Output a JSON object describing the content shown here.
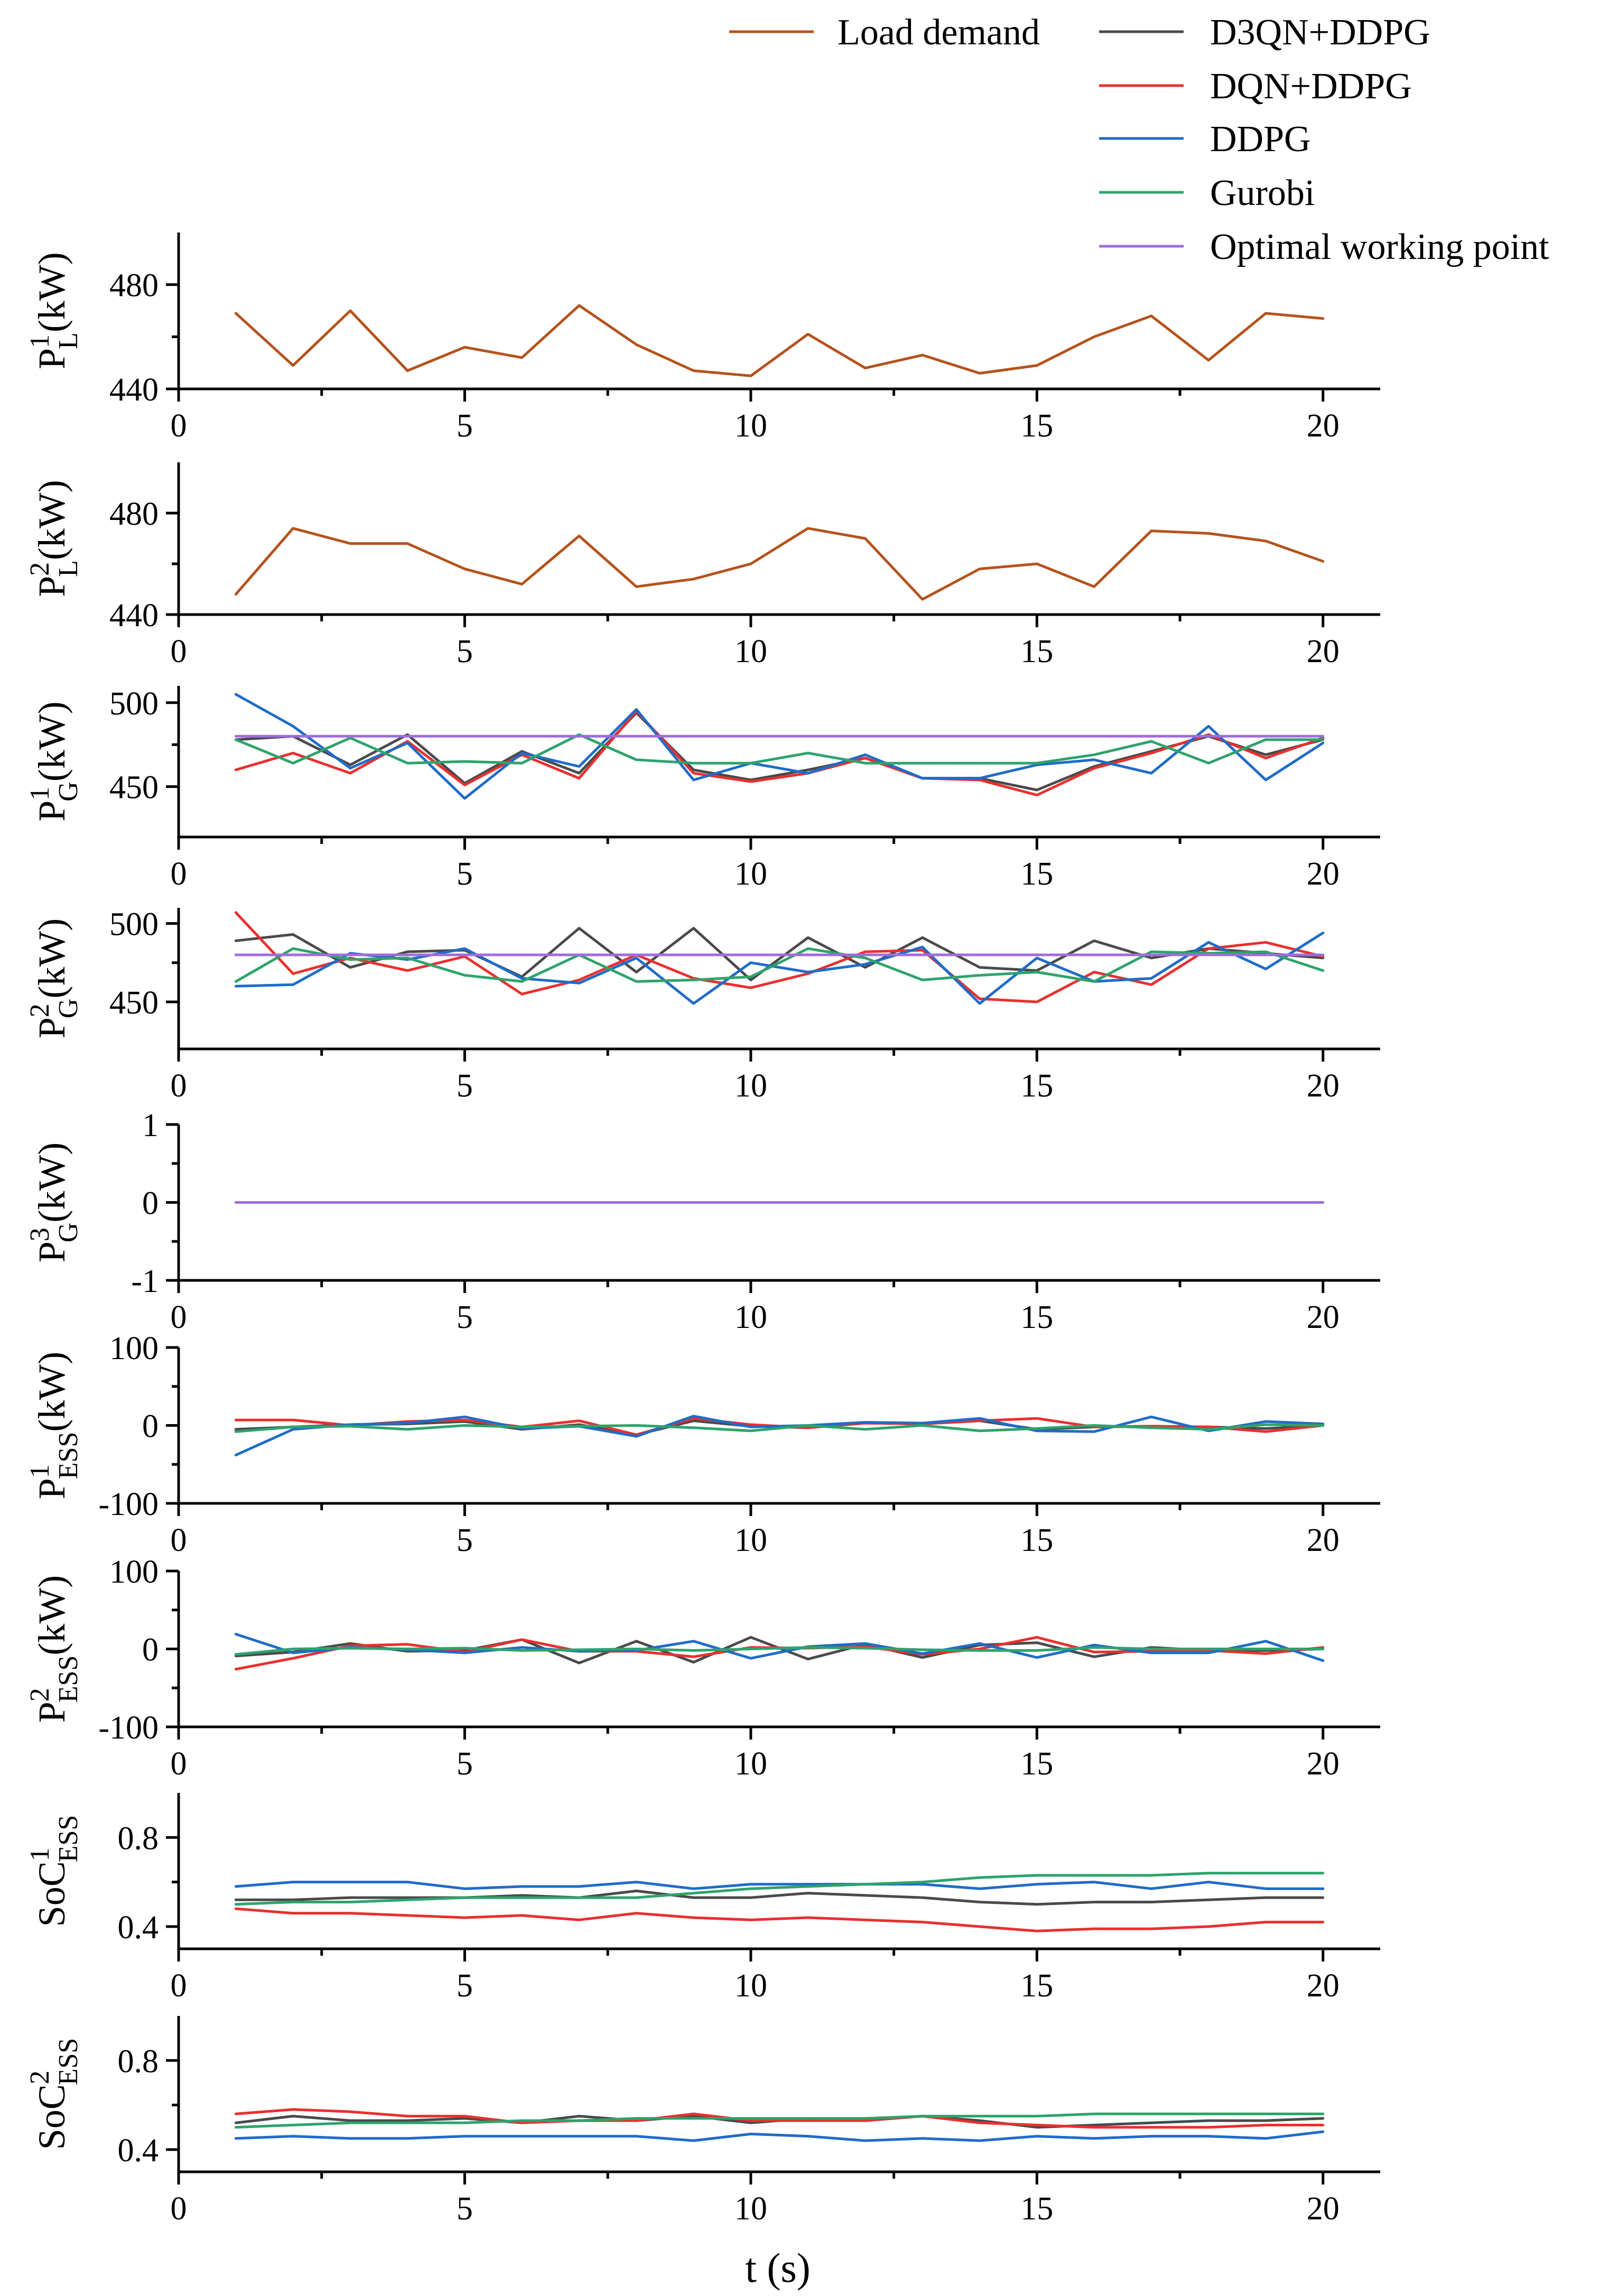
{
  "chart_data": {
    "type": "line",
    "xlabel": "t (s)",
    "colors": {
      "Load demand": "#b5521b",
      "D3QN+DDPG": "#4a4a4a",
      "DQN+DDPG": "#e8302f",
      "DDPG": "#1f6cc8",
      "Gurobi": "#2ea36b",
      "Optimal working point": "#a06cdc"
    },
    "legend": [
      "Load demand",
      "D3QN+DDPG",
      "DQN+DDPG",
      "DDPG",
      "Gurobi",
      "Optimal working point"
    ],
    "xlim": [
      0,
      21
    ],
    "xticks": [
      0,
      5,
      10,
      15,
      20
    ],
    "x": [
      1,
      2,
      3,
      4,
      5,
      6,
      7,
      8,
      9,
      10,
      11,
      12,
      13,
      14,
      15,
      16,
      17,
      18,
      19,
      20
    ],
    "panels": [
      {
        "id": "pl1",
        "ylabel": {
          "base": "P",
          "sup": "1",
          "sub": "L",
          "unit": "(kW)"
        },
        "ylim": [
          440,
          500
        ],
        "yticks": [
          440,
          480
        ],
        "series": [
          {
            "name": "Load demand",
            "values": [
              469,
              449,
              470,
              447,
              456,
              452,
              472,
              457,
              447,
              445,
              461,
              448,
              453,
              446,
              449,
              460,
              468,
              451,
              469,
              467
            ]
          }
        ]
      },
      {
        "id": "pl2",
        "ylabel": {
          "base": "P",
          "sup": "2",
          "sub": "L",
          "unit": "(kW)"
        },
        "ylim": [
          440,
          500
        ],
        "yticks": [
          440,
          480
        ],
        "series": [
          {
            "name": "Load demand",
            "values": [
              448,
              474,
              468,
              468,
              458,
              452,
              471,
              451,
              454,
              460,
              474,
              470,
              446,
              458,
              460,
              451,
              473,
              472,
              469,
              461
            ]
          }
        ]
      },
      {
        "id": "pg1",
        "ylabel": {
          "base": "P",
          "sup": "1",
          "sub": "G",
          "unit": "(kW)"
        },
        "ylim": [
          420,
          510
        ],
        "yticks": [
          450,
          500
        ],
        "series": [
          {
            "name": "D3QN+DDPG",
            "values": [
              478,
              480,
              463,
              481,
              452,
              471,
              458,
              494,
              460,
              454,
              460,
              467,
              455,
              455,
              448,
              462,
              471,
              480,
              469,
              478
            ]
          },
          {
            "name": "DQN+DDPG",
            "values": [
              460,
              470,
              458,
              477,
              451,
              469,
              455,
              495,
              458,
              453,
              458,
              467,
              455,
              454,
              445,
              461,
              470,
              481,
              467,
              479
            ]
          },
          {
            "name": "DDPG",
            "values": [
              505,
              486,
              461,
              476,
              443,
              470,
              462,
              496,
              454,
              464,
              458,
              469,
              455,
              455,
              463,
              466,
              458,
              486,
              454,
              476
            ]
          },
          {
            "name": "Gurobi",
            "values": [
              478,
              464,
              479,
              464,
              465,
              464,
              481,
              466,
              464,
              464,
              470,
              464,
              464,
              464,
              464,
              469,
              477,
              464,
              478,
              478
            ]
          },
          {
            "name": "Optimal working point",
            "values": [
              480,
              480,
              480,
              480,
              480,
              480,
              480,
              480,
              480,
              480,
              480,
              480,
              480,
              480,
              480,
              480,
              480,
              480,
              480,
              480
            ]
          }
        ]
      },
      {
        "id": "pg2",
        "ylabel": {
          "base": "P",
          "sup": "2",
          "sub": "G",
          "unit": "(kW)"
        },
        "ylim": [
          420,
          510
        ],
        "yticks": [
          450,
          500
        ],
        "series": [
          {
            "name": "D3QN+DDPG",
            "values": [
              489,
              493,
              472,
              482,
              483,
              466,
              497,
              469,
              497,
              464,
              491,
              472,
              491,
              472,
              470,
              489,
              478,
              484,
              481,
              478
            ]
          },
          {
            "name": "DQN+DDPG",
            "values": [
              507,
              468,
              478,
              470,
              479,
              455,
              464,
              480,
              465,
              459,
              468,
              482,
              483,
              452,
              450,
              469,
              461,
              484,
              488,
              479
            ]
          },
          {
            "name": "DDPG",
            "values": [
              460,
              461,
              481,
              477,
              484,
              465,
              462,
              478,
              449,
              475,
              469,
              474,
              485,
              449,
              478,
              463,
              465,
              488,
              471,
              494
            ]
          },
          {
            "name": "Gurobi",
            "values": [
              463,
              484,
              477,
              478,
              467,
              463,
              480,
              463,
              464,
              466,
              484,
              478,
              464,
              467,
              469,
              463,
              482,
              481,
              482,
              470
            ]
          },
          {
            "name": "Optimal working point",
            "values": [
              480,
              480,
              480,
              480,
              480,
              480,
              480,
              480,
              480,
              480,
              480,
              480,
              480,
              480,
              480,
              480,
              480,
              480,
              480,
              480
            ]
          }
        ]
      },
      {
        "id": "pg3",
        "ylabel": {
          "base": "P",
          "sup": "3",
          "sub": "G",
          "unit": "(kW)"
        },
        "ylim": [
          -1,
          1
        ],
        "yticks": [
          -1,
          0,
          1
        ],
        "series": [
          {
            "name": "Optimal working point",
            "values": [
              0,
              0,
              0,
              0,
              0,
              0,
              0,
              0,
              0,
              0,
              0,
              0,
              0,
              0,
              0,
              0,
              0,
              0,
              0,
              0
            ]
          }
        ]
      },
      {
        "id": "pess1",
        "ylabel": {
          "base": "P",
          "sup": "1",
          "sub": "ESS",
          "unit": "(kW)"
        },
        "ylim": [
          -100,
          100
        ],
        "yticks": [
          -100,
          0,
          100
        ],
        "series": [
          {
            "name": "D3QN+DDPG",
            "values": [
              -5,
              -2,
              1,
              2,
              5,
              -5,
              1,
              -12,
              6,
              -1,
              -3,
              3,
              2,
              6,
              -5,
              -2,
              -1,
              -2,
              -4,
              0
            ]
          },
          {
            "name": "DQN+DDPG",
            "values": [
              7,
              7,
              0,
              5,
              7,
              -2,
              6,
              -12,
              9,
              1,
              -3,
              3,
              2,
              6,
              9,
              -2,
              -1,
              -2,
              -8,
              0
            ]
          },
          {
            "name": "DDPG",
            "values": [
              -38,
              -5,
              1,
              3,
              11,
              -4,
              -1,
              -14,
              12,
              -2,
              0,
              4,
              3,
              9,
              -7,
              -8,
              11,
              -7,
              5,
              2
            ]
          },
          {
            "name": "Gurobi",
            "values": [
              -8,
              -2,
              -1,
              -5,
              0,
              -2,
              -1,
              0,
              -3,
              -7,
              0,
              -5,
              0,
              -7,
              -4,
              0,
              -3,
              -5,
              1,
              0
            ]
          }
        ]
      },
      {
        "id": "pess2",
        "ylabel": {
          "base": "P",
          "sup": "2",
          "sub": "ESS",
          "unit": "(kW)"
        },
        "ylim": [
          -100,
          100
        ],
        "yticks": [
          -100,
          0,
          100
        ],
        "series": [
          {
            "name": "D3QN+DDPG",
            "values": [
              -9,
              -4,
              7,
              -3,
              -2,
              12,
              -18,
              10,
              -17,
              15,
              -13,
              6,
              -11,
              5,
              8,
              -10,
              2,
              -2,
              -2,
              0
            ]
          },
          {
            "name": "DQN+DDPG",
            "values": [
              -26,
              -12,
              4,
              6,
              -4,
              12,
              -3,
              -3,
              -10,
              2,
              1,
              3,
              -7,
              0,
              15,
              -4,
              -3,
              -2,
              -6,
              2
            ]
          },
          {
            "name": "DDPG",
            "values": [
              19,
              -5,
              2,
              -1,
              -5,
              2,
              -3,
              -2,
              10,
              -12,
              3,
              7,
              -6,
              7,
              -11,
              5,
              -5,
              -5,
              10,
              -15
            ]
          },
          {
            "name": "Gurobi",
            "values": [
              -7,
              0,
              1,
              0,
              1,
              -2,
              -1,
              0,
              -2,
              0,
              2,
              1,
              -1,
              -2,
              -2,
              2,
              0,
              0,
              0,
              0
            ]
          }
        ]
      },
      {
        "id": "soc1",
        "ylabel": {
          "base": "SoC",
          "sup": "1",
          "sub": "ESS",
          "unit": ""
        },
        "ylim": [
          0.3,
          1.0
        ],
        "yticks": [
          0.4,
          0.8
        ],
        "series": [
          {
            "name": "D3QN+DDPG",
            "values": [
              0.52,
              0.52,
              0.53,
              0.53,
              0.53,
              0.54,
              0.53,
              0.56,
              0.53,
              0.53,
              0.55,
              0.54,
              0.53,
              0.51,
              0.5,
              0.51,
              0.51,
              0.52,
              0.53,
              0.53
            ]
          },
          {
            "name": "DQN+DDPG",
            "values": [
              0.48,
              0.46,
              0.46,
              0.45,
              0.44,
              0.45,
              0.43,
              0.46,
              0.44,
              0.43,
              0.44,
              0.43,
              0.42,
              0.4,
              0.38,
              0.39,
              0.39,
              0.4,
              0.42,
              0.42
            ]
          },
          {
            "name": "DDPG",
            "values": [
              0.58,
              0.6,
              0.6,
              0.6,
              0.57,
              0.58,
              0.58,
              0.6,
              0.57,
              0.59,
              0.59,
              0.59,
              0.59,
              0.57,
              0.59,
              0.6,
              0.57,
              0.6,
              0.57,
              0.57
            ]
          },
          {
            "name": "Gurobi",
            "values": [
              0.5,
              0.51,
              0.51,
              0.52,
              0.53,
              0.53,
              0.53,
              0.53,
              0.55,
              0.57,
              0.58,
              0.59,
              0.6,
              0.62,
              0.63,
              0.63,
              0.63,
              0.64,
              0.64,
              0.64
            ]
          }
        ]
      },
      {
        "id": "soc2",
        "ylabel": {
          "base": "SoC",
          "sup": "2",
          "sub": "ESS",
          "unit": ""
        },
        "ylim": [
          0.3,
          1.0
        ],
        "yticks": [
          0.4,
          0.8
        ],
        "series": [
          {
            "name": "D3QN+DDPG",
            "values": [
              0.52,
              0.55,
              0.53,
              0.53,
              0.54,
              0.52,
              0.55,
              0.53,
              0.55,
              0.52,
              0.54,
              0.53,
              0.55,
              0.53,
              0.5,
              0.51,
              0.52,
              0.53,
              0.53,
              0.54
            ]
          },
          {
            "name": "DQN+DDPG",
            "values": [
              0.56,
              0.58,
              0.57,
              0.55,
              0.55,
              0.52,
              0.53,
              0.53,
              0.56,
              0.53,
              0.53,
              0.53,
              0.55,
              0.52,
              0.51,
              0.5,
              0.5,
              0.5,
              0.51,
              0.51
            ]
          },
          {
            "name": "DDPG",
            "values": [
              0.45,
              0.46,
              0.45,
              0.45,
              0.46,
              0.46,
              0.46,
              0.46,
              0.44,
              0.47,
              0.46,
              0.44,
              0.45,
              0.44,
              0.46,
              0.45,
              0.46,
              0.46,
              0.45,
              0.48
            ]
          },
          {
            "name": "Gurobi",
            "values": [
              0.5,
              0.51,
              0.52,
              0.52,
              0.52,
              0.53,
              0.53,
              0.54,
              0.54,
              0.54,
              0.54,
              0.54,
              0.55,
              0.55,
              0.55,
              0.56,
              0.56,
              0.56,
              0.56,
              0.56
            ]
          }
        ]
      }
    ]
  }
}
